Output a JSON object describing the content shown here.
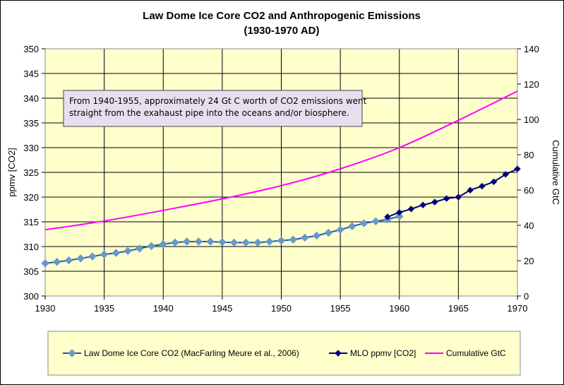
{
  "chart_data": {
    "type": "line",
    "title": "Law Dome Ice Core CO2 and Anthropogenic Emissions",
    "subtitle": "(1930-1970 AD)",
    "ylabel": "ppmv [CO2]",
    "y2label": "Cumulative GtC",
    "xlim": [
      1930,
      1970
    ],
    "ylim": [
      300,
      350
    ],
    "y2lim": [
      0,
      140
    ],
    "x_ticks": [
      "1930",
      "1935",
      "1940",
      "1945",
      "1950",
      "1955",
      "1960",
      "1965",
      "1970"
    ],
    "y_ticks": [
      "300",
      "305",
      "310",
      "315",
      "320",
      "325",
      "330",
      "335",
      "340",
      "345",
      "350"
    ],
    "y2_ticks": [
      "0",
      "20",
      "40",
      "60",
      "80",
      "100",
      "120",
      "140"
    ],
    "grid": true,
    "legend_position": "bottom",
    "annotation": {
      "line1": "From 1940-1955, approximately 24 Gt C worth of CO2 emissions went",
      "line2": "straight from the exahaust pipe into the oceans and/or biosphere."
    },
    "colors": {
      "plot_bg": "#ffffcc",
      "law_dome": "#6699cc",
      "law_dome_line": "#2255aa",
      "mlo": "#000080",
      "cumulative": "#ff00ff",
      "annotation_bg": "#e6e0ee"
    },
    "series": [
      {
        "name": "Law Dome Ice Core CO2 (MacFarling Meure et al., 2006)",
        "axis": "left",
        "x": [
          1930,
          1931,
          1932,
          1933,
          1934,
          1935,
          1936,
          1937,
          1938,
          1939,
          1940,
          1941,
          1942,
          1943,
          1944,
          1945,
          1946,
          1947,
          1948,
          1949,
          1950,
          1951,
          1952,
          1953,
          1954,
          1955,
          1956,
          1957,
          1958,
          1959,
          1960
        ],
        "values": [
          306.6,
          306.9,
          307.2,
          307.6,
          308.0,
          308.4,
          308.7,
          309.1,
          309.6,
          310.1,
          310.5,
          310.8,
          311.0,
          311.0,
          311.0,
          310.9,
          310.8,
          310.8,
          310.8,
          311.0,
          311.2,
          311.4,
          311.8,
          312.2,
          312.8,
          313.4,
          314.1,
          314.7,
          315.1,
          315.5,
          316.1
        ]
      },
      {
        "name": "MLO ppmv [CO2]",
        "axis": "left",
        "x": [
          1959,
          1960,
          1961,
          1962,
          1963,
          1964,
          1965,
          1966,
          1967,
          1968,
          1969,
          1970
        ],
        "values": [
          316.0,
          316.9,
          317.6,
          318.4,
          319.0,
          319.7,
          320.0,
          321.4,
          322.2,
          323.1,
          324.6,
          325.7
        ]
      },
      {
        "name": "Cumulative GtC",
        "axis": "right",
        "x": [
          1930,
          1935,
          1940,
          1945,
          1950,
          1955,
          1960,
          1965,
          1970
        ],
        "values": [
          37.5,
          42.5,
          48.5,
          55,
          62.5,
          72,
          84,
          99.5,
          116
        ]
      }
    ]
  }
}
